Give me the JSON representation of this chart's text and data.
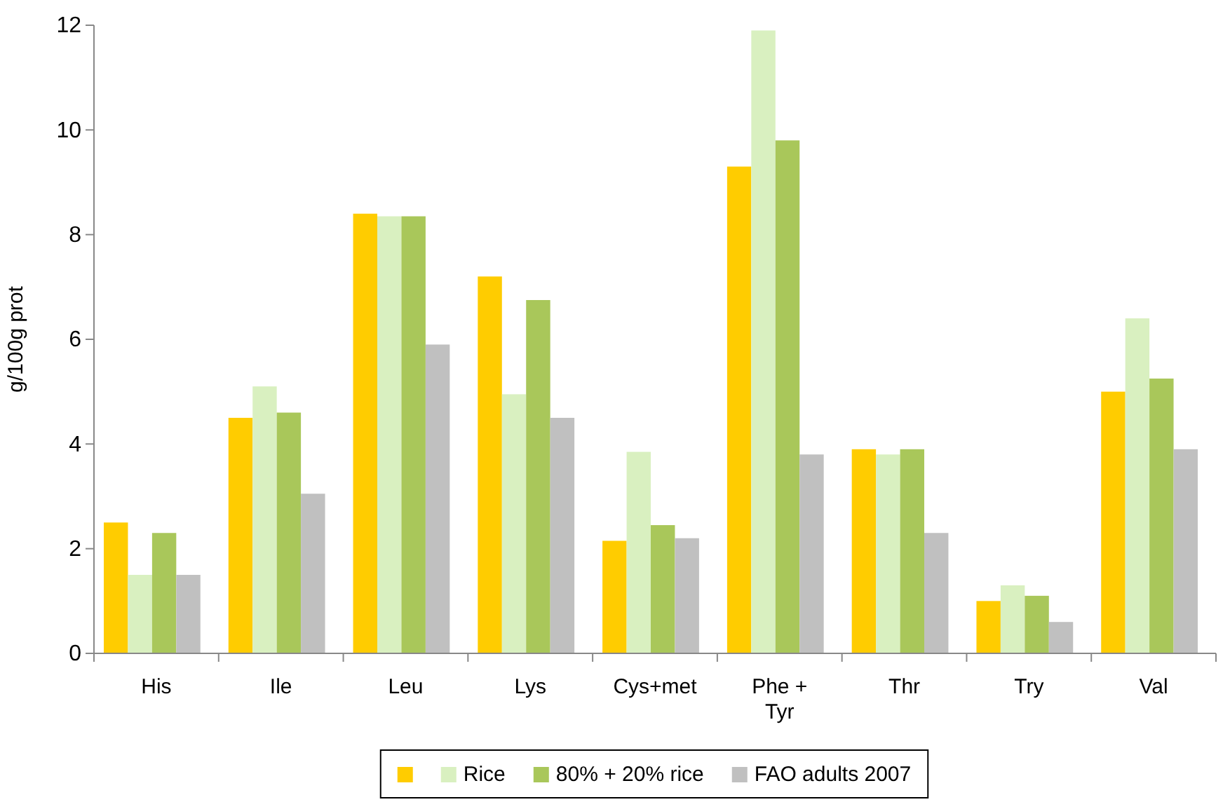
{
  "chart_data": {
    "type": "bar",
    "ylabel": "g/100g prot",
    "categories": [
      "His",
      "Ile",
      "Leu",
      "Lys",
      "Cys+met",
      "Phe + Tyr",
      "Thr",
      "Try",
      "Val"
    ],
    "series": [
      {
        "color": "#ffcc00",
        "values": [
          2.5,
          4.5,
          8.4,
          7.2,
          2.15,
          9.3,
          3.9,
          1.0,
          5.0
        ]
      },
      {
        "name": "Rice",
        "color": "#d9f0c0",
        "values": [
          1.5,
          5.1,
          8.35,
          4.95,
          3.85,
          11.9,
          3.8,
          1.3,
          6.4
        ]
      },
      {
        "name": "80% + 20% rice",
        "color": "#a9c75a",
        "values": [
          2.3,
          4.6,
          8.35,
          6.75,
          2.45,
          9.8,
          3.9,
          1.1,
          5.25
        ]
      },
      {
        "name": "FAO adults 2007",
        "color": "#c0c0c0",
        "values": [
          1.5,
          3.05,
          5.9,
          4.5,
          2.2,
          3.8,
          2.3,
          0.6,
          3.9
        ]
      }
    ],
    "ylim": [
      0,
      12
    ],
    "yticks": [
      0,
      2,
      4,
      6,
      8,
      10,
      12
    ],
    "grid": false,
    "legend": "bottom"
  }
}
